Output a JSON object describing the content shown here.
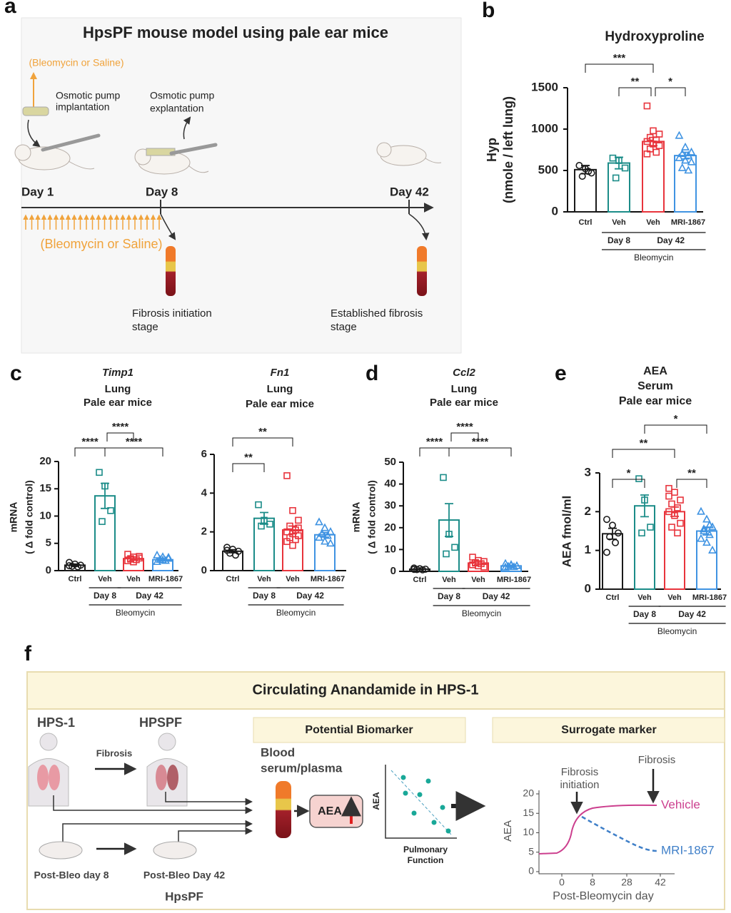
{
  "panel_labels": [
    "a",
    "b",
    "c",
    "d",
    "e",
    "f"
  ],
  "panel_a": {
    "title": "HpsPF mouse model using pale ear mice",
    "treatment_top": "(Bleomycin or Saline)",
    "implantation": [
      "Osmotic pump",
      "implantation"
    ],
    "explantation": [
      "Osmotic pump",
      "explantation"
    ],
    "days": [
      "Day 1",
      "Day 8",
      "Day 42"
    ],
    "treatment_bottom": "(Bleomycin or Saline)",
    "stage_initiation": [
      "Fibrosis initiation",
      "stage"
    ],
    "stage_established": [
      "Established fibrosis",
      "stage"
    ]
  },
  "chart_data": [
    {
      "type": "bar",
      "title": [
        "Hydroxyproline"
      ],
      "ylabel": [
        "Hyp",
        "(nmole / left lung)"
      ],
      "categories": [
        "Ctrl",
        "Veh",
        "Veh",
        "MRI-1867"
      ],
      "values": [
        510,
        590,
        850,
        680
      ],
      "errors": [
        50,
        70,
        50,
        40
      ],
      "colors": [
        "#1a1a1a",
        "#1b8c88",
        "#e8343c",
        "#3f93e2"
      ],
      "markers": [
        "circle",
        "square",
        "square",
        "triangle"
      ],
      "points": [
        [
          560,
          520,
          470,
          430,
          490
        ],
        [
          650,
          620,
          530,
          410
        ],
        [
          1280,
          980,
          940,
          900,
          870,
          850,
          820,
          800,
          760,
          720,
          700
        ],
        [
          920,
          780,
          720,
          700,
          680,
          650,
          620,
          600,
          530,
          500
        ]
      ],
      "ylim": [
        0,
        1500
      ],
      "yticks": [
        0,
        500,
        1000,
        1500
      ],
      "significance": [
        "***",
        "**",
        "*"
      ],
      "groups": [
        "Day 8",
        "Day 42"
      ],
      "treatment": "Bleomycin"
    },
    {
      "type": "bar",
      "title": [
        "Timp1",
        "Lung",
        "Pale ear mice"
      ],
      "ylabel": [
        "mRNA",
        "( Δ fold control)"
      ],
      "categories": [
        "Ctrl",
        "Veh",
        "Veh",
        "MRI-1867"
      ],
      "values": [
        1,
        13.7,
        2.2,
        2.0
      ],
      "errors": [
        0.2,
        2.3,
        0.3,
        0.2
      ],
      "colors": [
        "#1a1a1a",
        "#1b8c88",
        "#e8343c",
        "#3f93e2"
      ],
      "markers": [
        "circle",
        "square",
        "square",
        "triangle"
      ],
      "points": [
        [
          1.5,
          1.2,
          1,
          0.8,
          0.7,
          0.9
        ],
        [
          18,
          15.5,
          11,
          9
        ],
        [
          3,
          2.5,
          2.3,
          2.2,
          2,
          1.8,
          1.6,
          2.6,
          2.1
        ],
        [
          2.8,
          2.5,
          2.2,
          2,
          1.8,
          1.6,
          1.9,
          2.4
        ]
      ],
      "ylim": [
        0,
        20
      ],
      "yticks": [
        0,
        5,
        10,
        15,
        20
      ],
      "significance": [
        "****",
        "****",
        "****"
      ],
      "groups": [
        "Day 8",
        "Day 42"
      ],
      "treatment": "Bleomycin"
    },
    {
      "type": "bar",
      "title": [
        "Fn1",
        "Lung",
        "Pale ear mice"
      ],
      "categories": [
        "Ctrl",
        "Veh",
        "Veh",
        "MRI-1867"
      ],
      "values": [
        1.0,
        2.7,
        2.1,
        1.85
      ],
      "errors": [
        0.08,
        0.3,
        0.2,
        0.12
      ],
      "colors": [
        "#1a1a1a",
        "#1b8c88",
        "#e8343c",
        "#3f93e2"
      ],
      "markers": [
        "circle",
        "square",
        "square",
        "triangle"
      ],
      "points": [
        [
          1.2,
          1.1,
          1.0,
          0.9,
          0.8,
          1.05
        ],
        [
          3.4,
          2.6,
          2.4,
          2.3
        ],
        [
          4.9,
          3.1,
          2.6,
          2.3,
          2.1,
          2.0,
          1.9,
          1.8,
          1.7,
          1.6,
          1.5,
          1.3,
          2.2
        ],
        [
          2.5,
          2.2,
          2.0,
          1.9,
          1.8,
          1.7,
          1.5,
          1.4
        ]
      ],
      "ylim": [
        0,
        6
      ],
      "yticks": [
        0,
        2,
        4,
        6
      ],
      "significance": [
        "**",
        "**"
      ],
      "groups": [
        "Day 8",
        "Day 42"
      ],
      "treatment": "Bleomycin"
    },
    {
      "type": "bar",
      "title": [
        "Ccl2",
        "Lung",
        "Pale ear mice"
      ],
      "ylabel": [
        "mRNA",
        "( Δ fold control)"
      ],
      "categories": [
        "Ctrl",
        "Veh",
        "Veh",
        "MRI-1867"
      ],
      "values": [
        1,
        23.5,
        3.8,
        2.5
      ],
      "errors": [
        0.2,
        7.5,
        0.8,
        0.3
      ],
      "colors": [
        "#1a1a1a",
        "#1b8c88",
        "#e8343c",
        "#3f93e2"
      ],
      "markers": [
        "circle",
        "square",
        "square",
        "triangle"
      ],
      "points": [
        [
          1.5,
          1.2,
          1,
          0.8,
          0.7,
          0.9
        ],
        [
          43,
          17,
          11,
          8
        ],
        [
          6.5,
          5,
          4.5,
          4,
          3.5,
          3,
          2.5,
          2,
          3.8
        ],
        [
          3.5,
          3,
          2.5,
          2.2,
          2,
          1.8,
          2.8
        ]
      ],
      "ylim": [
        0,
        50
      ],
      "yticks": [
        0,
        10,
        20,
        30,
        40,
        50
      ],
      "significance": [
        "****",
        "****",
        "****"
      ],
      "groups": [
        "Day 8",
        "Day 42"
      ],
      "treatment": "Bleomycin"
    },
    {
      "type": "bar",
      "title": [
        "AEA",
        "Serum",
        "Pale ear mice"
      ],
      "ylabel": [
        "AEA fmol/ml"
      ],
      "categories": [
        "Ctrl",
        "Veh",
        "Veh",
        "MRI-1867"
      ],
      "values": [
        1.43,
        2.15,
        2.0,
        1.5
      ],
      "errors": [
        0.14,
        0.28,
        0.12,
        0.1
      ],
      "colors": [
        "#1a1a1a",
        "#1b8c88",
        "#e8343c",
        "#3f93e2"
      ],
      "markers": [
        "circle",
        "square",
        "square",
        "triangle"
      ],
      "points": [
        [
          1.8,
          1.65,
          1.45,
          1.35,
          1.2,
          0.95
        ],
        [
          2.85,
          2.3,
          1.6,
          1.45
        ],
        [
          2.6,
          2.5,
          2.3,
          2.2,
          2.1,
          2.0,
          1.9,
          1.7,
          1.6,
          1.45,
          2.4
        ],
        [
          2.0,
          1.8,
          1.6,
          1.5,
          1.4,
          1.3,
          1.2,
          1.0,
          1.55,
          1.65
        ]
      ],
      "ylim": [
        0,
        3
      ],
      "yticks": [
        0,
        1,
        2,
        3
      ],
      "significance": [
        "*",
        "**",
        "**",
        "*"
      ],
      "groups": [
        "Day 8",
        "Day 42"
      ],
      "treatment": "Bleomycin"
    }
  ],
  "panel_f": {
    "title": "Circulating Anandamide in HPS-1",
    "hps1": "HPS-1",
    "hpspf": "HPSPF",
    "fibrosis": "Fibrosis",
    "post_bleo_8": "Post-Bleo day 8",
    "post_bleo_42": "Post-Bleo Day 42",
    "model": "HpsPF",
    "biomarker_header": "Potential  Biomarker",
    "blood": [
      "Blood",
      "serum/plasma"
    ],
    "aea_box": "AEA",
    "scatter_y": "AEA",
    "scatter_x": [
      "Pulmonary",
      "Function"
    ],
    "surrogate_header": "Surrogate marker",
    "inset": {
      "ylabel": "AEA",
      "xlabel": "Post-Bleomycin day",
      "yticks": [
        0,
        5,
        10,
        15,
        20
      ],
      "xticks": [
        0,
        8,
        28,
        42
      ],
      "annotation_initiation": [
        "Fibrosis",
        "initiation"
      ],
      "annotation_fibrosis": "Fibrosis",
      "vehicle": "Vehicle",
      "mri": "MRI-1867"
    }
  }
}
